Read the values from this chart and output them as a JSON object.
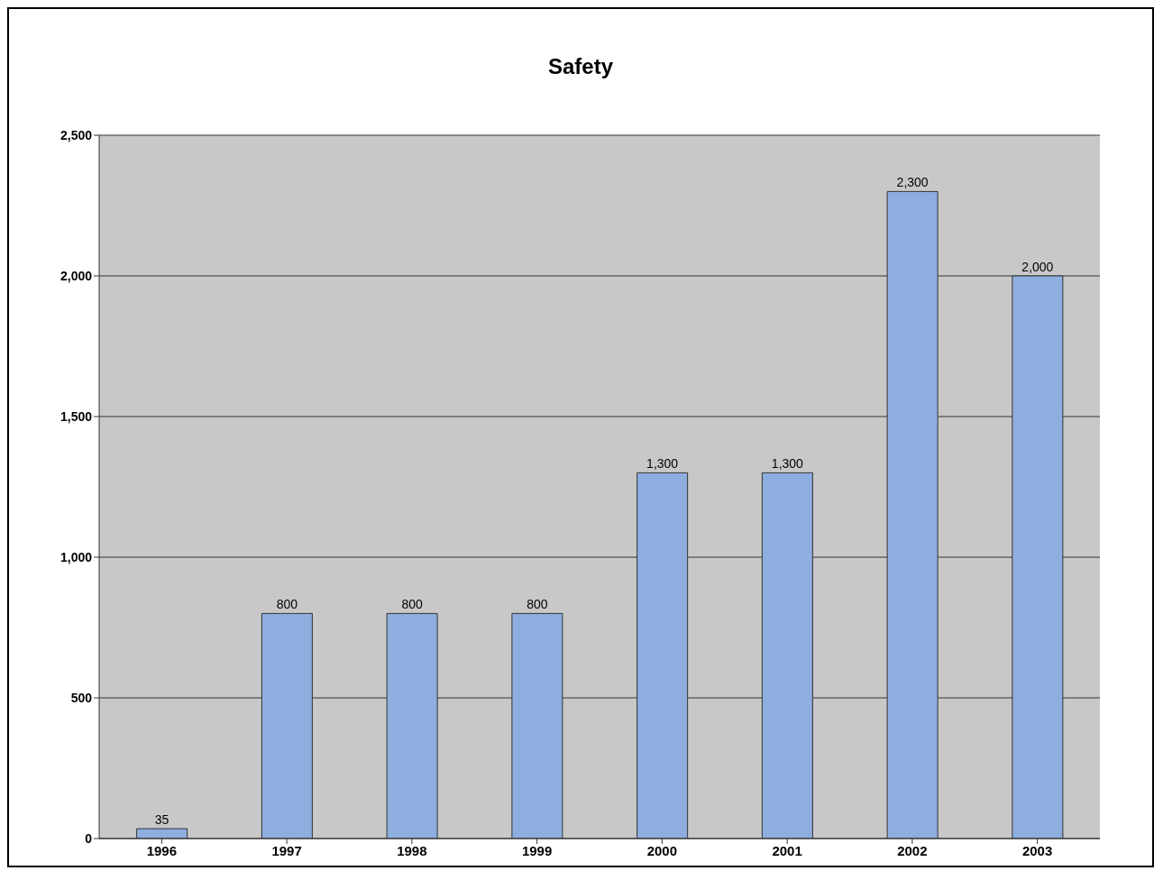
{
  "chart_data": {
    "type": "bar",
    "title": "Safety",
    "categories": [
      "1996",
      "1997",
      "1998",
      "1999",
      "2000",
      "2001",
      "2002",
      "2003"
    ],
    "values": [
      35,
      800,
      800,
      800,
      1300,
      1300,
      2300,
      2000
    ],
    "value_labels": [
      "35",
      "800",
      "800",
      "800",
      "1,300",
      "1,300",
      "2,300",
      "2,000"
    ],
    "color": "#8eaee0",
    "ylim": [
      0,
      2500
    ],
    "yticks": [
      0,
      500,
      {
        "value": 1000,
        "label": "1,000"
      },
      {
        "value": 1500,
        "label": "1,500"
      },
      {
        "value": 2000,
        "label": "2,000"
      },
      {
        "value": 2500,
        "label": "2,500"
      }
    ],
    "grid": "y"
  }
}
